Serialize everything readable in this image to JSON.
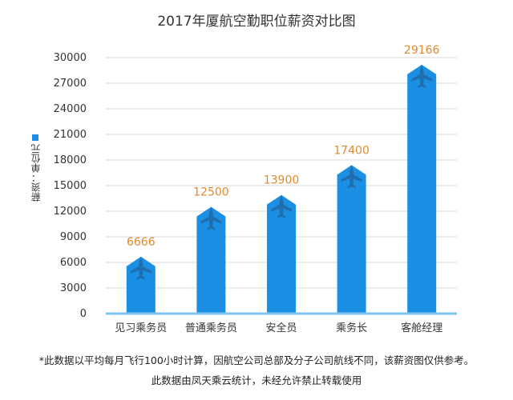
{
  "chart_data": {
    "type": "bar",
    "title": "2017年厦航空勤职位薪资对比图",
    "ylabel": "薪资：单位元",
    "categories": [
      "见习乘务员",
      "普通乘务员",
      "安全员",
      "乘务长",
      "客舱经理"
    ],
    "series": [
      {
        "name": "薪资：单位元",
        "values": [
          6666,
          12500,
          13900,
          17400,
          29166
        ]
      }
    ],
    "value_labels": [
      "6666",
      "12500",
      "13900",
      "17400",
      "29166"
    ],
    "ylim": [
      0,
      30000
    ],
    "yticks": [
      0,
      3000,
      6000,
      9000,
      12000,
      15000,
      18000,
      21000,
      24000,
      27000,
      30000
    ],
    "ytick_labels": [
      "0",
      "3000",
      "6000",
      "9000",
      "12000",
      "15000",
      "18000",
      "21000",
      "24000",
      "27000",
      "30000"
    ],
    "grid": true,
    "legend": "left",
    "bar_color": "#1a8fe3",
    "label_color": "#e08a2b",
    "plane_color": "#1f6fae"
  },
  "notes": {
    "line1": "*此数据以平均每月飞行100小时计算，因航空公司总部及分子公司航线不同，该薪资图仅供参考。",
    "line2": "此数据由凤天乘云统计，未经允许禁止转载使用"
  }
}
